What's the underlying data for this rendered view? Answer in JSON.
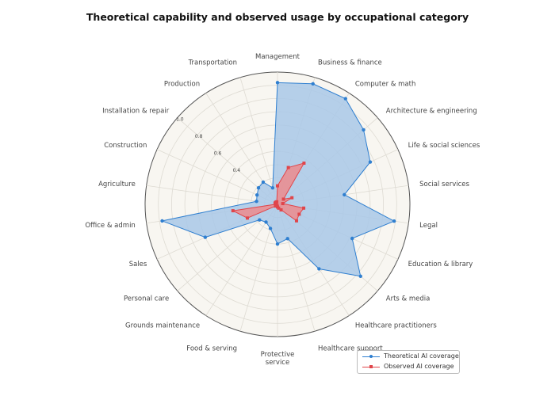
{
  "chart_data": {
    "type": "radar",
    "title": "Theoretical capability and observed usage by occupational category",
    "categories": [
      "Management",
      "Business & finance",
      "Computer & math",
      "Architecture & engineering",
      "Life & social sciences",
      "Social services",
      "Legal",
      "Education & library",
      "Arts & media",
      "Healthcare practitioners",
      "Healthcare support",
      "Protective service",
      "Food & serving",
      "Grounds maintenance",
      "Personal care",
      "Sales",
      "Office & admin",
      "Agriculture",
      "Construction",
      "Installation & repair",
      "Production",
      "Transportation"
    ],
    "radial_ticks": [
      "0.4",
      "0.6",
      "0.8",
      "1.0"
    ],
    "rlim": [
      0,
      1
    ],
    "grid": true,
    "legend_placement": "bottom-right",
    "series": [
      {
        "name": "Theoretical AI coverage",
        "color": "#2f7fd0",
        "fill": "#a9c8e8",
        "marker": "circle",
        "values": [
          0.92,
          0.95,
          0.95,
          0.86,
          0.77,
          0.51,
          0.89,
          0.62,
          0.83,
          0.58,
          0.27,
          0.3,
          0.19,
          0.16,
          0.18,
          0.6,
          0.88,
          0.16,
          0.17,
          0.19,
          0.2,
          0.13
        ]
      },
      {
        "name": "Observed AI coverage",
        "color": "#e0454a",
        "fill": "#ec8b8d",
        "marker": "square",
        "values": [
          0.14,
          0.29,
          0.37,
          0.06,
          0.12,
          0.04,
          0.2,
          0.18,
          0.19,
          0.05,
          0.03,
          0.02,
          0.01,
          0.01,
          0.02,
          0.25,
          0.34,
          0.01,
          0.02,
          0.02,
          0.02,
          0.02
        ]
      }
    ]
  }
}
